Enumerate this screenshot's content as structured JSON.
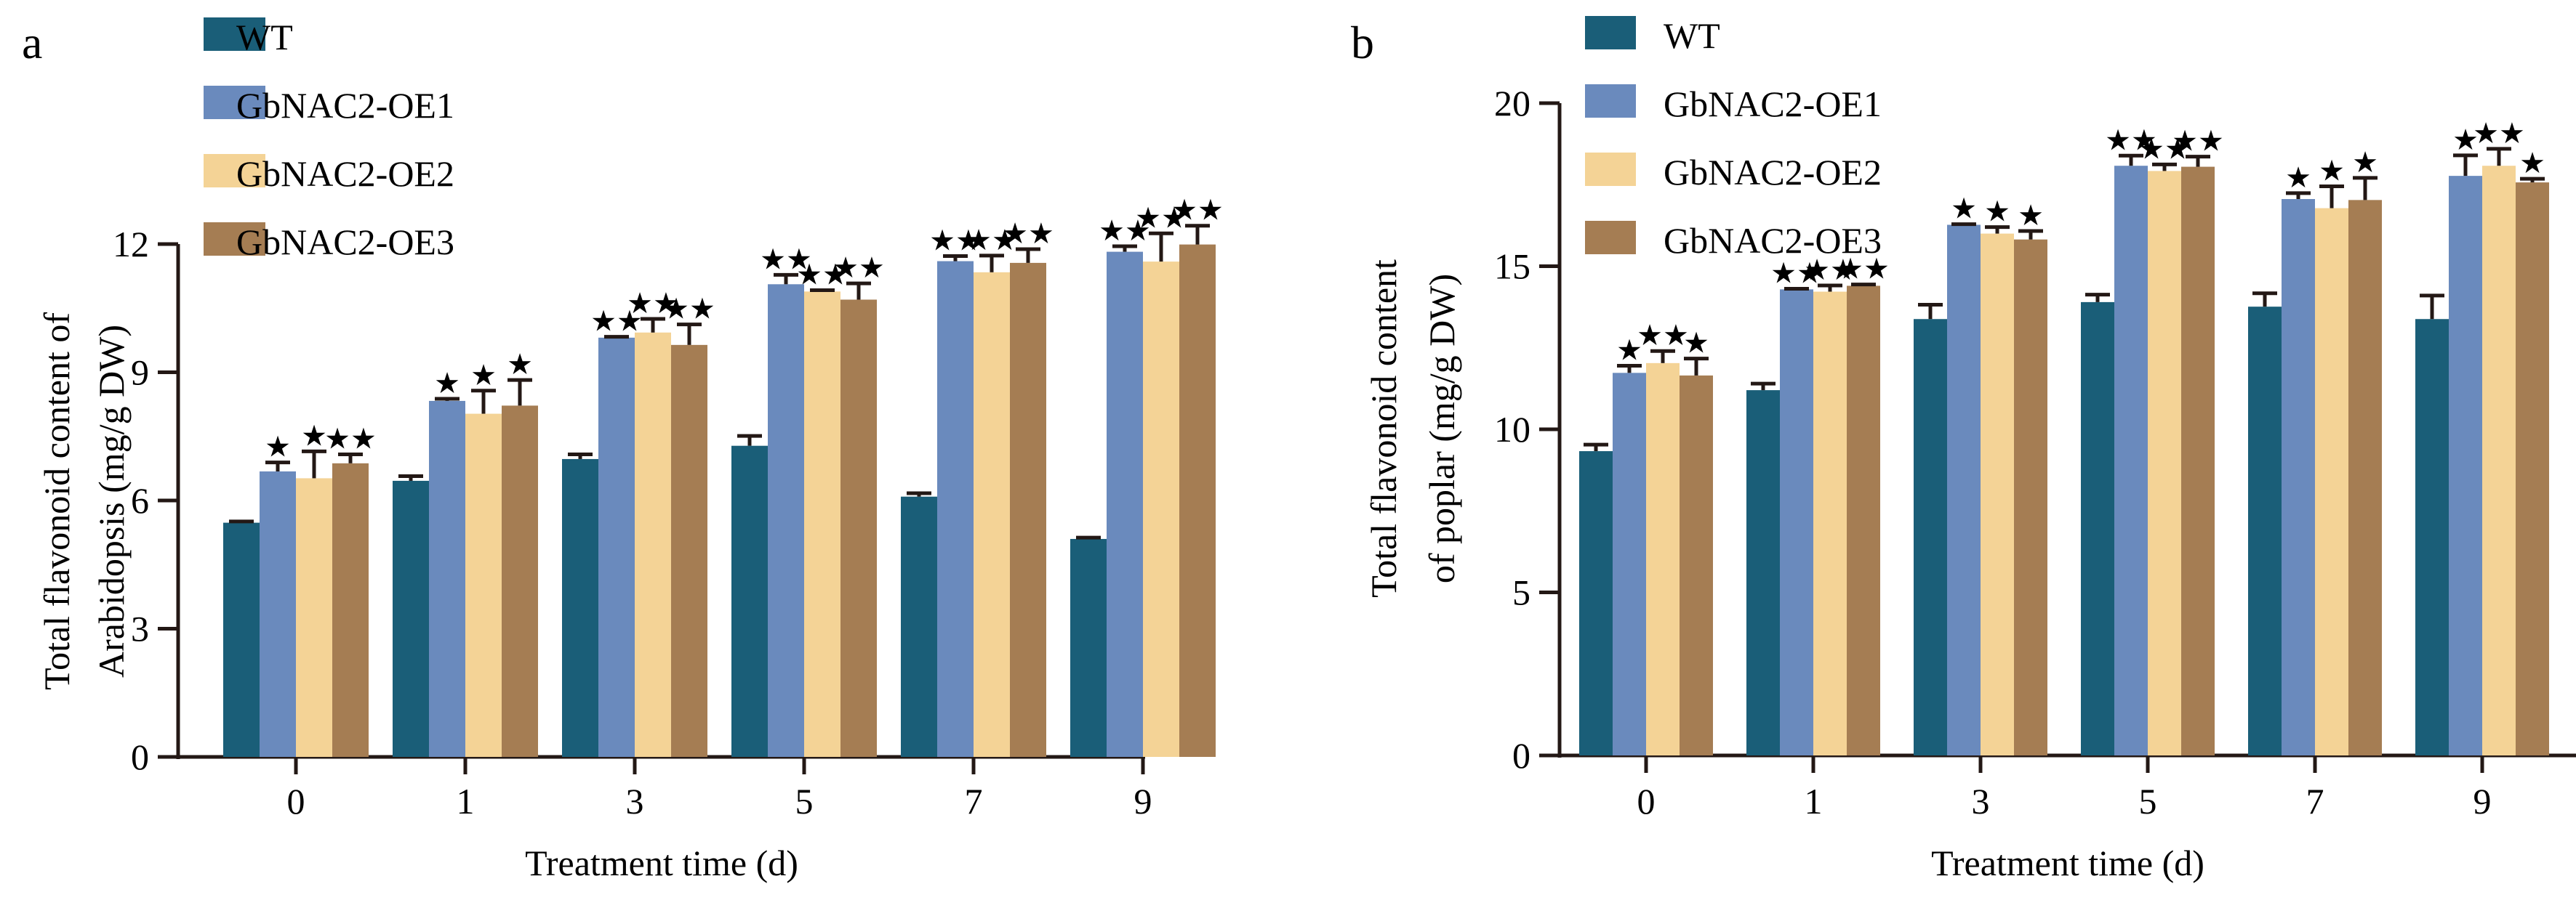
{
  "colors": {
    "WT": "#1a5e78",
    "GbNAC2-OE1": "#6a8abd",
    "GbNAC2-OE2": "#f4d396",
    "GbNAC2-OE3": "#a57d53",
    "ink": "#231815"
  },
  "chart_data": [
    {
      "panel": "a",
      "type": "bar",
      "title": "",
      "xlabel": "Treatment time (d)",
      "ylabel_lines": [
        "Total flavonoid content of",
        "Arabidopsis (mg/g DW)"
      ],
      "ylim": [
        0,
        12
      ],
      "yticks": [
        0,
        3,
        6,
        9,
        12
      ],
      "grid": false,
      "legend_placement": "top-center",
      "categories": [
        "0",
        "1",
        "3",
        "5",
        "7",
        "9"
      ],
      "series": [
        {
          "name": "WT",
          "values": [
            5.48,
            6.46,
            6.97,
            7.28,
            6.09,
            5.1
          ],
          "errors": [
            0.03,
            0.11,
            0.11,
            0.23,
            0.08,
            0.03
          ],
          "significance": [
            "",
            "",
            "",
            "",
            "",
            ""
          ]
        },
        {
          "name": "GbNAC2-OE1",
          "values": [
            6.68,
            8.33,
            9.81,
            11.06,
            11.6,
            11.82
          ],
          "errors": [
            0.21,
            0.05,
            0.02,
            0.22,
            0.12,
            0.13
          ],
          "significance": [
            "*",
            "*",
            "**",
            "**",
            "**",
            "**"
          ]
        },
        {
          "name": "GbNAC2-OE2",
          "values": [
            6.52,
            8.03,
            9.93,
            10.89,
            11.34,
            11.59
          ],
          "errors": [
            0.63,
            0.54,
            0.32,
            0.03,
            0.39,
            0.66
          ],
          "significance": [
            "*",
            "*",
            "**",
            "**",
            "**",
            "**"
          ]
        },
        {
          "name": "GbNAC2-OE3",
          "values": [
            6.87,
            8.22,
            9.64,
            10.7,
            11.56,
            11.99
          ],
          "errors": [
            0.21,
            0.6,
            0.48,
            0.38,
            0.32,
            0.44
          ],
          "significance": [
            "**",
            "*",
            "**",
            "**",
            "**",
            "**"
          ]
        }
      ]
    },
    {
      "panel": "b",
      "type": "bar",
      "title": "",
      "xlabel": "Treatment time (d)",
      "ylabel_lines": [
        "Total flavonoid content",
        "of poplar (mg/g DW)"
      ],
      "ylim": [
        0,
        20
      ],
      "yticks": [
        0,
        5,
        10,
        15,
        20
      ],
      "grid": false,
      "legend_placement": "top-left",
      "categories": [
        "0",
        "1",
        "3",
        "5",
        "7",
        "9"
      ],
      "series": [
        {
          "name": "WT",
          "values": [
            9.33,
            11.2,
            13.38,
            13.9,
            13.76,
            13.38
          ],
          "errors": [
            0.2,
            0.2,
            0.44,
            0.23,
            0.41,
            0.72
          ],
          "significance": [
            "",
            "",
            "",
            "",
            "",
            ""
          ]
        },
        {
          "name": "GbNAC2-OE1",
          "values": [
            11.73,
            14.29,
            16.27,
            18.08,
            17.06,
            17.77
          ],
          "errors": [
            0.22,
            0.02,
            0.02,
            0.31,
            0.18,
            0.63
          ],
          "significance": [
            "*",
            "**",
            "*",
            "**",
            "*",
            "*"
          ]
        },
        {
          "name": "GbNAC2-OE2",
          "values": [
            12.03,
            14.22,
            16.0,
            17.92,
            16.78,
            18.08
          ],
          "errors": [
            0.37,
            0.19,
            0.2,
            0.2,
            0.67,
            0.52
          ],
          "significance": [
            "**",
            "**",
            "*",
            "**",
            "*",
            "**"
          ]
        },
        {
          "name": "GbNAC2-OE3",
          "values": [
            11.65,
            14.4,
            15.82,
            18.05,
            17.03,
            17.57
          ],
          "errors": [
            0.52,
            0.04,
            0.26,
            0.31,
            0.68,
            0.11
          ],
          "significance": [
            "*",
            "**",
            "*",
            "**",
            "*",
            "*"
          ]
        }
      ]
    }
  ]
}
